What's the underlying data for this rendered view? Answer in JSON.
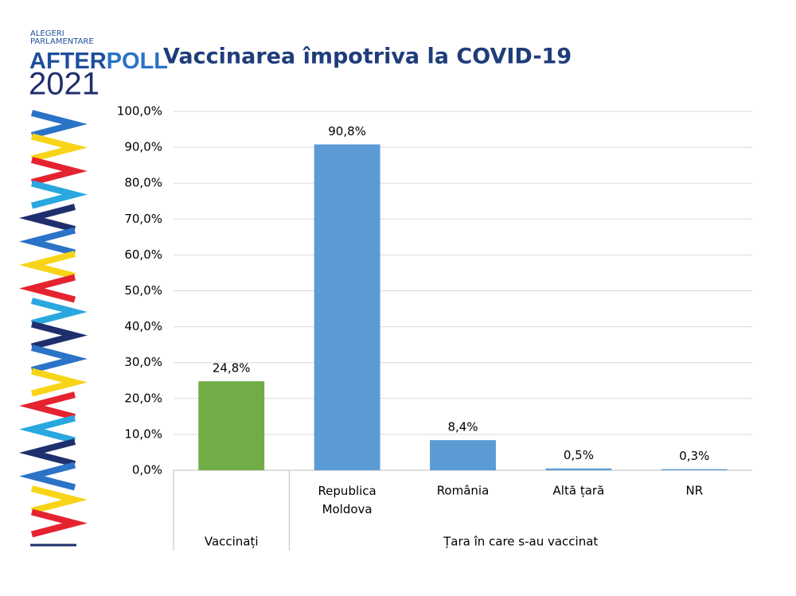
{
  "logo": {
    "line1": "ALEGERI",
    "line2": "PARLAMENTARE",
    "after": "AFTER",
    "poll": "POLL",
    "year": "2021"
  },
  "chart_data": {
    "type": "bar",
    "title": "Vaccinarea împotriva la COVID-19",
    "groups": [
      {
        "name": "Vaccinați",
        "categories": [
          null
        ],
        "values": [
          24.8
        ],
        "value_labels": [
          "24,8%"
        ],
        "color": "#70ad47"
      },
      {
        "name": "Țara în care s-au vaccinat",
        "categories": [
          "Republica Moldova",
          "România",
          "Altă țară",
          "NR"
        ],
        "values": [
          90.8,
          8.4,
          0.5,
          0.3
        ],
        "value_labels": [
          "90,8%",
          "8,4%",
          "0,5%",
          "0,3%"
        ],
        "color": "#5b9bd5"
      }
    ],
    "ylim": [
      0,
      100
    ],
    "yticks": [
      {
        "value": 0,
        "label": "0,0%"
      },
      {
        "value": 10,
        "label": "10,0%"
      },
      {
        "value": 20,
        "label": "20,0%"
      },
      {
        "value": 30,
        "label": "30,0%"
      },
      {
        "value": 40,
        "label": "40,0%"
      },
      {
        "value": 50,
        "label": "50,0%"
      },
      {
        "value": 60,
        "label": "60,0%"
      },
      {
        "value": 70,
        "label": "70,0%"
      },
      {
        "value": 80,
        "label": "80,0%"
      },
      {
        "value": 90,
        "label": "90,0%"
      },
      {
        "value": 100,
        "label": "100,0%"
      }
    ],
    "grid": true
  }
}
